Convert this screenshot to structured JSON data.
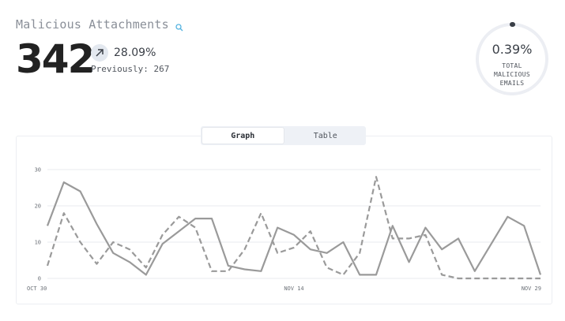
{
  "header": {
    "title": "Malicious Attachments",
    "count": "342",
    "change_pct": "28.09%",
    "previously": "Previously: 267"
  },
  "summary_ring": {
    "value": "0.39%",
    "label_lines": [
      "TOTAL",
      "MALICIOUS",
      "EMAILS"
    ],
    "fraction": 0.0039
  },
  "tabs": [
    {
      "label": "Graph",
      "active": true
    },
    {
      "label": "Table",
      "active": false
    }
  ],
  "colors": {
    "line": "#9a9a9a",
    "grid": "#e9ebef",
    "ring_track": "#eceef3",
    "ring_fill": "#3a3f47",
    "accent_icon": "#55b3e0"
  },
  "chart_data": {
    "type": "line",
    "x": [
      "Oct 30",
      "Oct 31",
      "Nov 1",
      "Nov 2",
      "Nov 3",
      "Nov 4",
      "Nov 5",
      "Nov 6",
      "Nov 7",
      "Nov 8",
      "Nov 9",
      "Nov 10",
      "Nov 11",
      "Nov 12",
      "Nov 13",
      "Nov 14",
      "Nov 15",
      "Nov 16",
      "Nov 17",
      "Nov 18",
      "Nov 19",
      "Nov 20",
      "Nov 21",
      "Nov 22",
      "Nov 23",
      "Nov 24",
      "Nov 25",
      "Nov 26",
      "Nov 27",
      "Nov 28",
      "Nov 29"
    ],
    "x_tick_labels": [
      "OCT 30",
      "NOV 14",
      "NOV 29"
    ],
    "y_ticks": [
      "0",
      "10",
      "20",
      "30"
    ],
    "ylim": [
      0,
      30
    ],
    "grid": true,
    "series": [
      {
        "style": "solid",
        "values": [
          14.5,
          26.5,
          24,
          15,
          7,
          4.5,
          1,
          9.5,
          13,
          16.5,
          16.5,
          3.5,
          2.5,
          2,
          14,
          12,
          8,
          7,
          10,
          1,
          1,
          14.5,
          4.5,
          14,
          8,
          11,
          2,
          9.5,
          17,
          14.5,
          1
        ]
      },
      {
        "style": "dashed",
        "values": [
          3.5,
          18,
          10,
          4,
          10,
          8,
          3,
          12,
          17,
          14,
          2,
          2,
          8,
          18,
          7,
          8.5,
          13,
          3,
          1,
          7,
          28,
          11,
          11,
          12,
          1,
          0,
          0,
          0,
          0,
          0,
          0
        ]
      }
    ]
  }
}
